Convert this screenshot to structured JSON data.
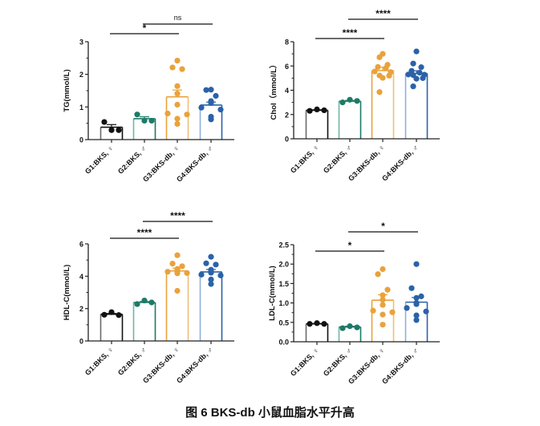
{
  "figure": {
    "caption": "图 6 BKS-db 小鼠血脂水平升高"
  },
  "colors": {
    "G1": "#111111",
    "G2": "#1d7a66",
    "G3": "#e9a23b",
    "G4": "#2a62a8",
    "G1_bar_left": "#6b6b6b",
    "G2_bar_left": "#6fb6a5",
    "G3_bar_right": "#f0be7a",
    "G4_bar_left": "#8fb0dc",
    "axis": "#222222"
  },
  "chart_data": [
    {
      "type": "bar",
      "id": "tg",
      "title": "",
      "ylabel": "TG(mmol/L)",
      "xlabel": "",
      "ylim": [
        0,
        3
      ],
      "yticks": [
        "0",
        "1",
        "2",
        "3"
      ],
      "ytick_values": [
        0,
        1,
        2,
        3
      ],
      "categories": [
        "G1:BKS, ♀",
        "G2:BKS, ♂",
        "G3:BKS-db, ♀",
        "G4:BKS-db, ♂"
      ],
      "means": [
        0.38,
        0.64,
        1.31,
        1.06
      ],
      "sem": [
        0.08,
        0.06,
        0.21,
        0.09
      ],
      "points": [
        [
          0.54,
          0.29,
          0.29
        ],
        [
          0.77,
          0.58,
          0.58
        ],
        [
          2.42,
          2.21,
          2.16,
          1.64,
          1.41,
          1.07,
          0.8,
          0.77,
          0.64,
          0.48
        ],
        [
          1.53,
          1.52,
          1.34,
          1.18,
          1.15,
          1.12,
          0.98,
          0.92,
          0.7,
          0.62
        ]
      ],
      "comparisons": [
        {
          "from": 0,
          "to": 2,
          "label": "*"
        },
        {
          "from": 1,
          "to": 3,
          "label": "ns"
        }
      ]
    },
    {
      "type": "bar",
      "id": "chol",
      "title": "",
      "ylabel": "Chol（mmol/L）",
      "xlabel": "",
      "ylim": [
        0,
        8
      ],
      "yticks": [
        "0",
        "2",
        "4",
        "6",
        "8"
      ],
      "ytick_values": [
        0,
        2,
        4,
        6,
        8
      ],
      "categories": [
        "G1:BKS, ♀",
        "G2:BKS, ♂",
        "G3:BKS-db, ♀",
        "G4:BKS-db, ♂"
      ],
      "means": [
        2.35,
        3.1,
        5.62,
        5.38
      ],
      "sem": [
        0.04,
        0.06,
        0.28,
        0.23
      ],
      "points": [
        [
          2.3,
          2.42,
          2.35
        ],
        [
          3.0,
          3.22,
          3.12
        ],
        [
          7.0,
          6.72,
          6.1,
          5.92,
          5.82,
          5.55,
          5.5,
          5.22,
          5.2,
          5.02,
          3.85
        ],
        [
          7.2,
          6.2,
          5.9,
          5.6,
          5.45,
          5.3,
          5.28,
          5.25,
          5.0,
          4.95,
          4.32
        ]
      ],
      "comparisons": [
        {
          "from": 0,
          "to": 2,
          "label": "****"
        },
        {
          "from": 1,
          "to": 3,
          "label": "****"
        }
      ]
    },
    {
      "type": "bar",
      "id": "hdl",
      "title": "",
      "ylabel": "HDL-C(mmol/L)",
      "xlabel": "",
      "ylim": [
        0,
        6
      ],
      "yticks": [
        "0",
        "2",
        "4",
        "6"
      ],
      "ytick_values": [
        0,
        2,
        4,
        6
      ],
      "categories": [
        "G1:BKS, ♀",
        "G2:BKS, ♂",
        "G3:BKS-db, ♀",
        "G4:BKS-db, ♂"
      ],
      "means": [
        1.65,
        2.38,
        4.33,
        4.27
      ],
      "sem": [
        0.05,
        0.06,
        0.17,
        0.15
      ],
      "points": [
        [
          1.62,
          1.78,
          1.6
        ],
        [
          2.28,
          2.5,
          2.38
        ],
        [
          5.3,
          4.78,
          4.62,
          4.45,
          4.35,
          4.3,
          4.28,
          4.2,
          4.18,
          3.1
        ],
        [
          5.2,
          4.8,
          4.72,
          4.4,
          4.3,
          4.22,
          4.1,
          4.05,
          3.8,
          3.52
        ]
      ],
      "comparisons": [
        {
          "from": 0,
          "to": 2,
          "label": "****"
        },
        {
          "from": 1,
          "to": 3,
          "label": "****"
        }
      ]
    },
    {
      "type": "bar",
      "id": "ldl",
      "title": "",
      "ylabel": "LDL-C(mmol/L)",
      "xlabel": "",
      "ylim": [
        0,
        2.5
      ],
      "yticks": [
        "0.0",
        "0.5",
        "1.0",
        "1.5",
        "2.0",
        "2.5"
      ],
      "ytick_values": [
        0,
        0.5,
        1.0,
        1.5,
        2.0,
        2.5
      ],
      "categories": [
        "G1:BKS, ♀",
        "G2:BKS, ♂",
        "G3:BKS-db, ♀",
        "G4:BKS-db, ♂"
      ],
      "means": [
        0.46,
        0.38,
        1.07,
        1.02
      ],
      "sem": [
        0.01,
        0.02,
        0.14,
        0.12
      ],
      "points": [
        [
          0.46,
          0.48,
          0.46
        ],
        [
          0.35,
          0.4,
          0.37
        ],
        [
          1.87,
          1.74,
          1.34,
          1.2,
          1.08,
          0.95,
          0.8,
          0.76,
          0.7,
          0.44
        ],
        [
          2.0,
          1.38,
          1.17,
          1.13,
          1.0,
          0.97,
          0.87,
          0.78,
          0.68,
          0.56
        ]
      ],
      "comparisons": [
        {
          "from": 0,
          "to": 2,
          "label": "*"
        },
        {
          "from": 1,
          "to": 3,
          "label": "*"
        }
      ]
    }
  ]
}
